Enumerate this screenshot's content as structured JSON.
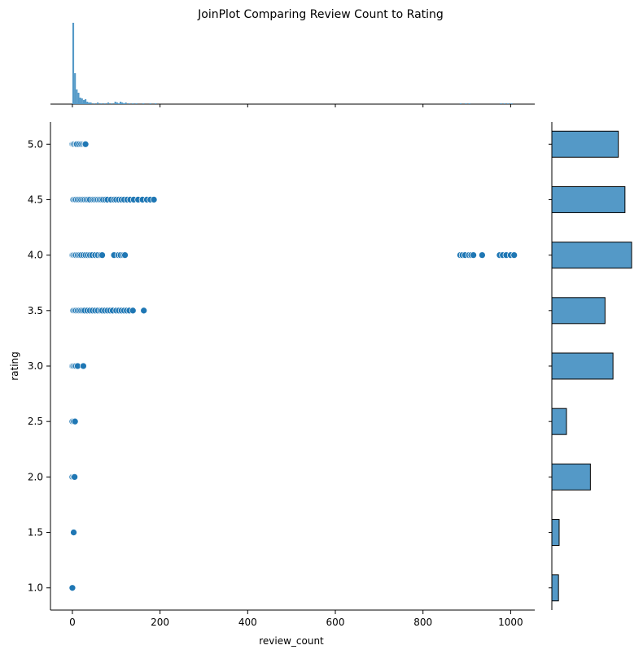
{
  "chart_data": {
    "type": "scatter",
    "title": "JoinPlot Comparing Review Count to Rating",
    "xlabel": "review_count",
    "ylabel": "rating",
    "xlim": [
      -50,
      1055
    ],
    "ylim": [
      0.8,
      5.2
    ],
    "xticks": [
      0,
      200,
      400,
      600,
      800,
      1000
    ],
    "yticks": [
      1.0,
      1.5,
      2.0,
      2.5,
      3.0,
      3.5,
      4.0,
      4.5,
      5.0
    ],
    "ytick_labels": [
      "1.0",
      "1.5",
      "2.0",
      "2.5",
      "3.0",
      "3.5",
      "4.0",
      "4.5",
      "5.0"
    ],
    "point_color": "#1f77b4",
    "hist_color": "#5499c7",
    "points": [
      [
        0,
        5.0
      ],
      [
        2,
        5.0
      ],
      [
        4,
        5.0
      ],
      [
        8,
        5.0
      ],
      [
        10,
        5.0
      ],
      [
        15,
        5.0
      ],
      [
        20,
        5.0
      ],
      [
        24,
        5.0
      ],
      [
        28,
        5.0
      ],
      [
        30,
        5.0
      ],
      [
        2,
        4.5
      ],
      [
        5,
        4.5
      ],
      [
        8,
        4.5
      ],
      [
        12,
        4.5
      ],
      [
        16,
        4.5
      ],
      [
        20,
        4.5
      ],
      [
        24,
        4.5
      ],
      [
        28,
        4.5
      ],
      [
        32,
        4.5
      ],
      [
        36,
        4.5
      ],
      [
        40,
        4.5
      ],
      [
        46,
        4.5
      ],
      [
        50,
        4.5
      ],
      [
        54,
        4.5
      ],
      [
        58,
        4.5
      ],
      [
        62,
        4.5
      ],
      [
        66,
        4.5
      ],
      [
        70,
        4.5
      ],
      [
        75,
        4.5
      ],
      [
        80,
        4.5
      ],
      [
        88,
        4.5
      ],
      [
        95,
        4.5
      ],
      [
        100,
        4.5
      ],
      [
        106,
        4.5
      ],
      [
        112,
        4.5
      ],
      [
        118,
        4.5
      ],
      [
        125,
        4.5
      ],
      [
        132,
        4.5
      ],
      [
        140,
        4.5
      ],
      [
        150,
        4.5
      ],
      [
        160,
        4.5
      ],
      [
        170,
        4.5
      ],
      [
        178,
        4.5
      ],
      [
        186,
        4.5
      ],
      [
        0,
        4.0
      ],
      [
        2,
        4.0
      ],
      [
        5,
        4.0
      ],
      [
        8,
        4.0
      ],
      [
        12,
        4.0
      ],
      [
        16,
        4.0
      ],
      [
        20,
        4.0
      ],
      [
        25,
        4.0
      ],
      [
        30,
        4.0
      ],
      [
        35,
        4.0
      ],
      [
        40,
        4.0
      ],
      [
        45,
        4.0
      ],
      [
        52,
        4.0
      ],
      [
        58,
        4.0
      ],
      [
        64,
        4.0
      ],
      [
        68,
        4.0
      ],
      [
        95,
        4.0
      ],
      [
        105,
        4.0
      ],
      [
        110,
        4.0
      ],
      [
        116,
        4.0
      ],
      [
        120,
        4.0
      ],
      [
        885,
        4.0
      ],
      [
        890,
        4.0
      ],
      [
        896,
        4.0
      ],
      [
        905,
        4.0
      ],
      [
        910,
        4.0
      ],
      [
        915,
        4.0
      ],
      [
        935,
        4.0
      ],
      [
        975,
        4.0
      ],
      [
        982,
        4.0
      ],
      [
        990,
        4.0
      ],
      [
        1000,
        4.0
      ],
      [
        1008,
        4.0
      ],
      [
        2,
        3.5
      ],
      [
        5,
        3.5
      ],
      [
        8,
        3.5
      ],
      [
        12,
        3.5
      ],
      [
        16,
        3.5
      ],
      [
        20,
        3.5
      ],
      [
        24,
        3.5
      ],
      [
        28,
        3.5
      ],
      [
        34,
        3.5
      ],
      [
        40,
        3.5
      ],
      [
        46,
        3.5
      ],
      [
        52,
        3.5
      ],
      [
        58,
        3.5
      ],
      [
        64,
        3.5
      ],
      [
        68,
        3.5
      ],
      [
        74,
        3.5
      ],
      [
        80,
        3.5
      ],
      [
        86,
        3.5
      ],
      [
        92,
        3.5
      ],
      [
        100,
        3.5
      ],
      [
        106,
        3.5
      ],
      [
        112,
        3.5
      ],
      [
        118,
        3.5
      ],
      [
        124,
        3.5
      ],
      [
        130,
        3.5
      ],
      [
        138,
        3.5
      ],
      [
        163,
        3.5
      ],
      [
        0,
        3.0
      ],
      [
        2,
        3.0
      ],
      [
        5,
        3.0
      ],
      [
        8,
        3.0
      ],
      [
        12,
        3.0
      ],
      [
        25,
        3.0
      ],
      [
        0,
        2.5
      ],
      [
        3,
        2.5
      ],
      [
        6,
        2.5
      ],
      [
        0,
        2.0
      ],
      [
        3,
        2.0
      ],
      [
        5,
        2.0
      ],
      [
        3,
        1.5
      ],
      [
        0,
        1.0
      ]
    ],
    "marginal_x_hist": {
      "bin_width": 4,
      "bins": [
        [
          0,
          100
        ],
        [
          4,
          38
        ],
        [
          8,
          18
        ],
        [
          12,
          14
        ],
        [
          16,
          8
        ],
        [
          20,
          7
        ],
        [
          24,
          5
        ],
        [
          28,
          6
        ],
        [
          32,
          3
        ],
        [
          36,
          2
        ],
        [
          40,
          2
        ],
        [
          48,
          1
        ],
        [
          56,
          2
        ],
        [
          64,
          1
        ],
        [
          72,
          1
        ],
        [
          80,
          2
        ],
        [
          88,
          1
        ],
        [
          96,
          3
        ],
        [
          100,
          2
        ],
        [
          104,
          1
        ],
        [
          108,
          3
        ],
        [
          112,
          2
        ],
        [
          116,
          1
        ],
        [
          120,
          2
        ],
        [
          128,
          1
        ],
        [
          136,
          1
        ],
        [
          144,
          1
        ],
        [
          160,
          1
        ],
        [
          176,
          1
        ],
        [
          188,
          1
        ],
        [
          884,
          1
        ],
        [
          896,
          1
        ],
        [
          904,
          1
        ],
        [
          976,
          1
        ],
        [
          984,
          1
        ],
        [
          992,
          1
        ],
        [
          1000,
          1
        ]
      ]
    },
    "marginal_y_hist": {
      "bins": [
        {
          "rating": 5.0,
          "count": 10
        },
        {
          "rating": 4.5,
          "count": 11
        },
        {
          "rating": 4.0,
          "count": 12
        },
        {
          "rating": 3.5,
          "count": 8
        },
        {
          "rating": 3.0,
          "count": 9.2
        },
        {
          "rating": 2.5,
          "count": 2.2
        },
        {
          "rating": 2.0,
          "count": 5.8
        },
        {
          "rating": 1.5,
          "count": 1.1
        },
        {
          "rating": 1.0,
          "count": 1.0
        }
      ]
    }
  }
}
